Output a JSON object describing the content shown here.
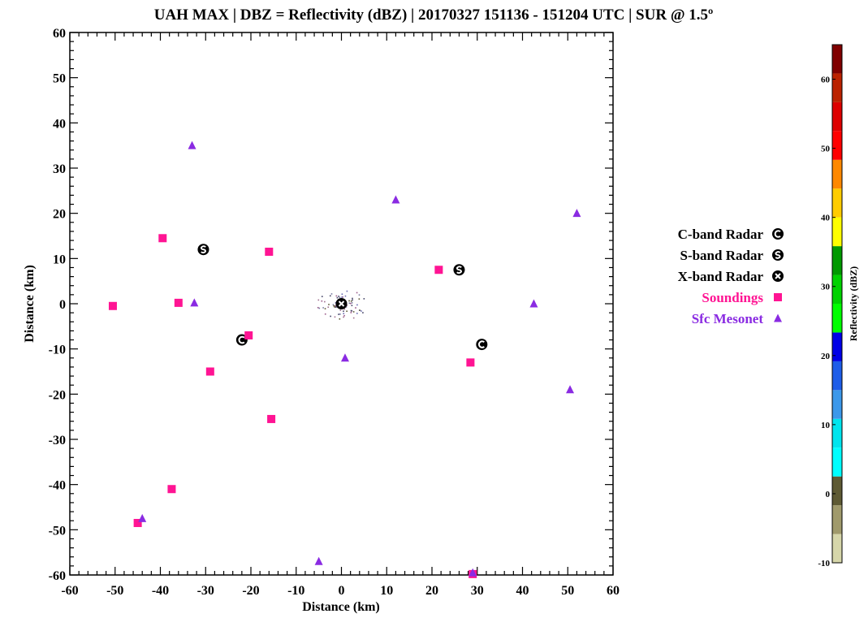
{
  "chart_data": {
    "type": "scatter",
    "title": "UAH MAX | DBZ = Reflectivity (dBZ) | 20170327 151136 - 151204 UTC | SUR @ 1.5º",
    "xlabel": "Distance (km)",
    "ylabel": "Distance (km)",
    "xlim": [
      -60,
      60
    ],
    "ylim": [
      -60,
      60
    ],
    "xticks": [
      -60,
      -50,
      -40,
      -30,
      -20,
      -10,
      0,
      10,
      20,
      30,
      40,
      50,
      60
    ],
    "yticks": [
      -60,
      -50,
      -40,
      -30,
      -20,
      -10,
      0,
      10,
      20,
      30,
      40,
      50,
      60
    ],
    "grid": false,
    "legend_position": "right",
    "series": [
      {
        "name": "C-band Radar",
        "symbol": "C",
        "color": "#000000",
        "points": [
          [
            -22,
            -8
          ],
          [
            31,
            -9
          ]
        ]
      },
      {
        "name": "S-band Radar",
        "symbol": "S",
        "color": "#000000",
        "points": [
          [
            -30.5,
            12
          ],
          [
            26,
            7.5
          ]
        ]
      },
      {
        "name": "X-band Radar",
        "symbol": "X",
        "color": "#000000",
        "points": [
          [
            0,
            0
          ]
        ]
      },
      {
        "name": "Soundings",
        "symbol": "square",
        "color": "#ff1493",
        "points": [
          [
            -50.5,
            -0.5
          ],
          [
            -39.5,
            14.5
          ],
          [
            -36,
            0.2
          ],
          [
            -16,
            11.5
          ],
          [
            -20.5,
            -7
          ],
          [
            -29,
            -15
          ],
          [
            -15.5,
            -25.5
          ],
          [
            -37.5,
            -41
          ],
          [
            -45,
            -48.5
          ],
          [
            21.5,
            7.5
          ],
          [
            28.5,
            -13
          ],
          [
            29,
            -59.8
          ]
        ]
      },
      {
        "name": "Sfc Mesonet",
        "symbol": "triangle",
        "color": "#8a2be2",
        "points": [
          [
            -33,
            35
          ],
          [
            -32.5,
            0.2
          ],
          [
            12,
            23
          ],
          [
            52,
            20
          ],
          [
            42.5,
            0
          ],
          [
            0.8,
            -12
          ],
          [
            50.5,
            -19
          ],
          [
            -44,
            -47.5
          ],
          [
            -5,
            -57
          ],
          [
            29,
            -59.5
          ]
        ]
      }
    ],
    "colorbar": {
      "label": "Reflectivity (dBZ)",
      "range": [
        -10,
        65
      ],
      "tick_values": [
        -10,
        0,
        10,
        20,
        30,
        40,
        50,
        60
      ],
      "tick_labels": [
        "-10",
        "0",
        "10",
        "20",
        "30",
        "40",
        "50",
        "60"
      ],
      "colors": [
        "#d6d6aa",
        "#a09a6c",
        "#5e5a34",
        "#00ffff",
        "#00e5ee",
        "#3c98ea",
        "#1e5de8",
        "#0000e6",
        "#00ff00",
        "#00d200",
        "#009900",
        "#ffff00",
        "#ffcc00",
        "#ff8800",
        "#ff0000",
        "#dd0000",
        "#bb2200",
        "#800000"
      ]
    }
  }
}
